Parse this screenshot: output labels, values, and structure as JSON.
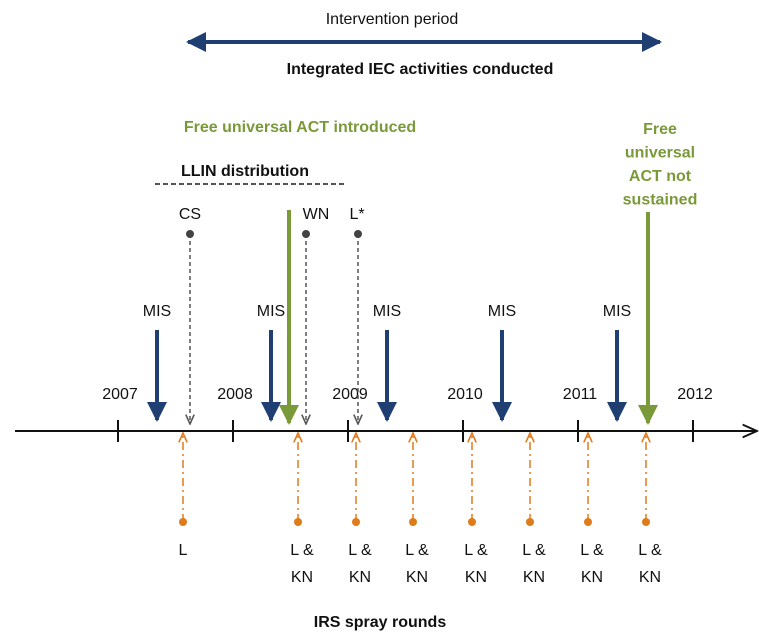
{
  "intervention": {
    "label": "Intervention period",
    "activities": "Integrated IEC activities conducted"
  },
  "act_introduced": "Free universal ACT introduced",
  "llin": {
    "label": "LLIN distribution",
    "rounds": [
      "CS",
      "WN",
      "L*"
    ]
  },
  "act_not_sustained": [
    "Free",
    "universal",
    "ACT not",
    "sustained"
  ],
  "years": [
    "2007",
    "2008",
    "2009",
    "2010",
    "2011",
    "2012"
  ],
  "mis": [
    "MIS",
    "MIS",
    "MIS",
    "MIS",
    "MIS"
  ],
  "irs": {
    "label": "IRS spray rounds",
    "rounds": [
      [
        "L"
      ],
      [
        "L &",
        "KN"
      ],
      [
        "L &",
        "KN"
      ],
      [
        "L &",
        "KN"
      ],
      [
        "L &",
        "KN"
      ],
      [
        "L &",
        "KN"
      ],
      [
        "L &",
        "KN"
      ],
      [
        "L &",
        "KN"
      ]
    ]
  }
}
